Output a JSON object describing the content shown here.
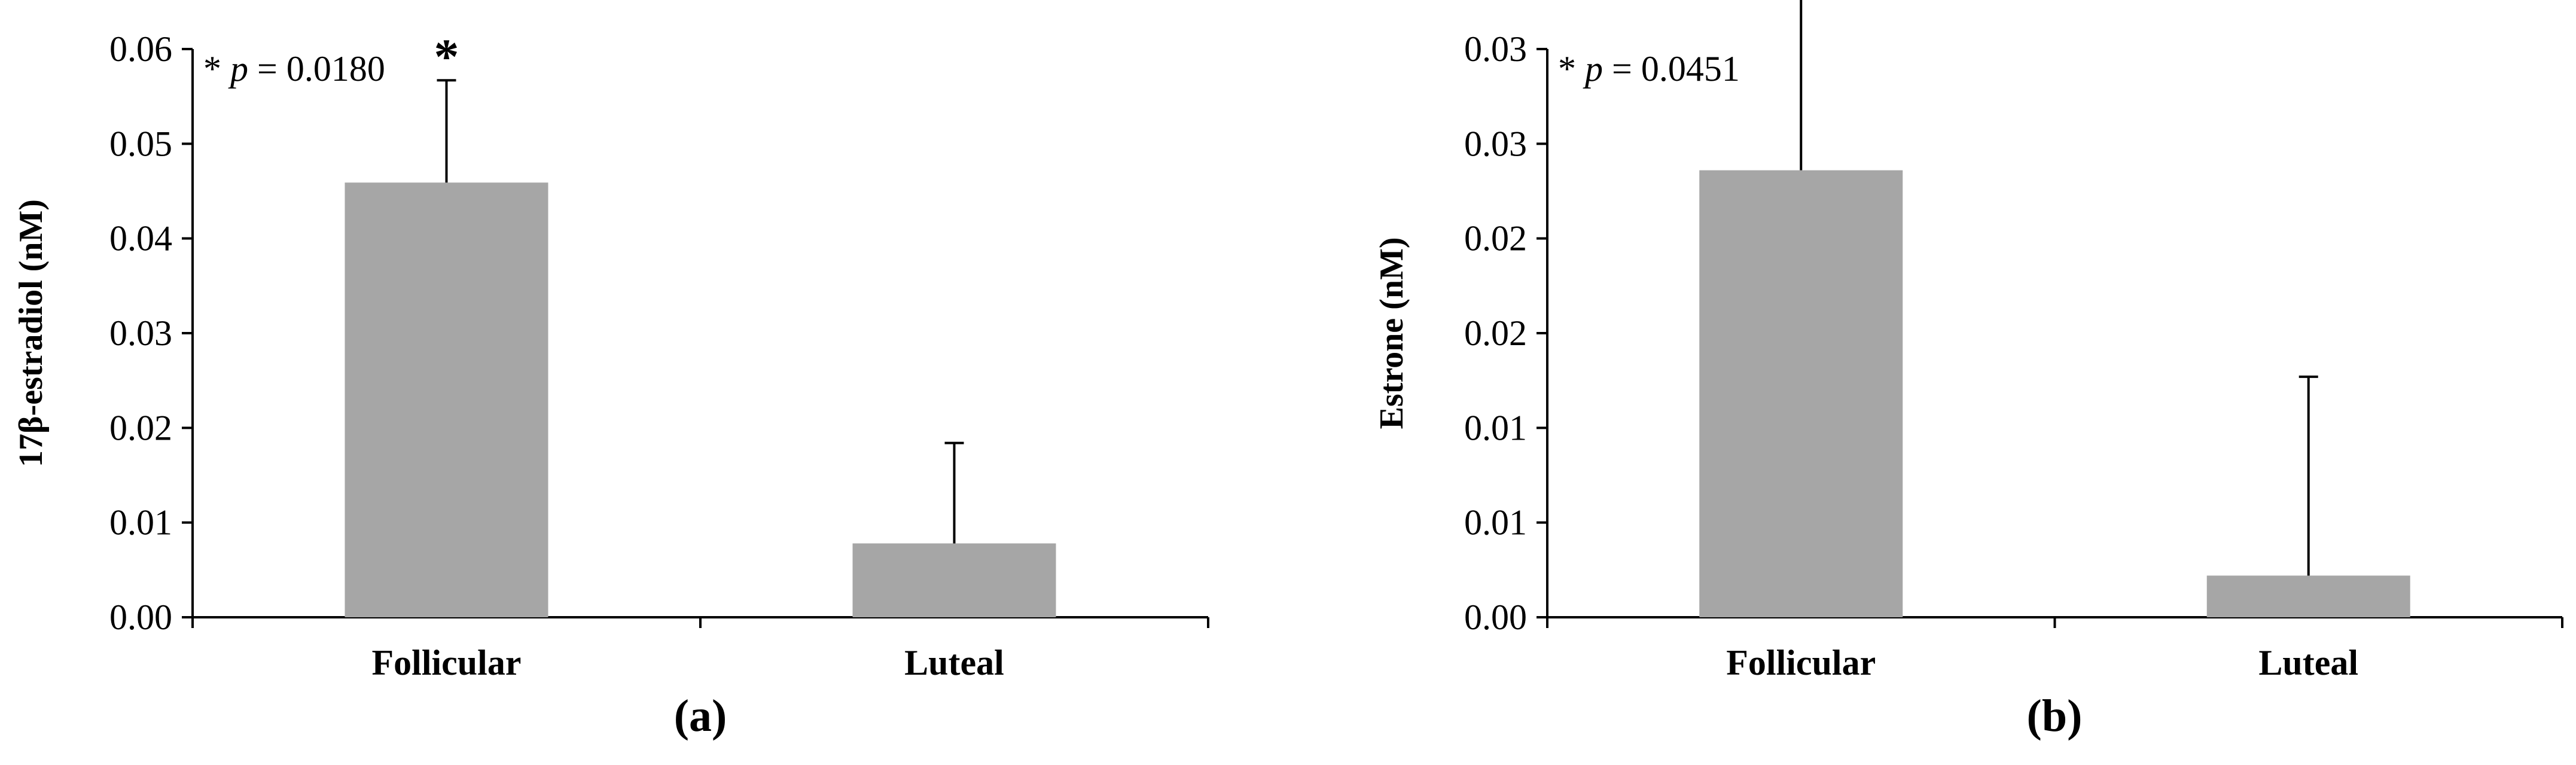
{
  "chart_data": [
    {
      "type": "bar",
      "panel_label": "(a)",
      "categories": [
        "Follicular",
        "Luteal"
      ],
      "values": [
        0.0459,
        0.0078
      ],
      "error_upper": [
        0.0567,
        0.0184
      ],
      "ylabel": "17β-estradiol (nM)",
      "xlabel": "",
      "ylim": [
        0,
        0.06
      ],
      "yticks": [
        0,
        0.01,
        0.02,
        0.03,
        0.04,
        0.05,
        0.06
      ],
      "ytick_labels": [
        "0.00",
        "0.01",
        "0.02",
        "0.03",
        "0.04",
        "0.05",
        "0.06"
      ],
      "annotation": {
        "star": "*",
        "p_label": "p",
        "p_value": "= 0.0180"
      },
      "significance_marker": "*",
      "grid": false,
      "legend": "none",
      "bar_color": "#a6a6a6"
    },
    {
      "type": "bar",
      "panel_label": "(b)",
      "categories": [
        "Follicular",
        "Luteal"
      ],
      "values": [
        0.0236,
        0.0022
      ],
      "error_upper": [
        0.034,
        0.0127
      ],
      "ylabel": "Estrone (nM)",
      "xlabel": "",
      "ylim": [
        0,
        0.03
      ],
      "yticks": [
        0,
        0.005,
        0.01,
        0.015,
        0.02,
        0.025,
        0.03
      ],
      "ytick_labels": [
        "0.00",
        "0.01",
        "0.01",
        "0.02",
        "0.02",
        "0.03",
        "0.03"
      ],
      "annotation": {
        "star": "*",
        "p_label": "p",
        "p_value": "= 0.0451"
      },
      "significance_marker": "*",
      "grid": false,
      "legend": "none",
      "bar_color": "#a6a6a6"
    }
  ]
}
